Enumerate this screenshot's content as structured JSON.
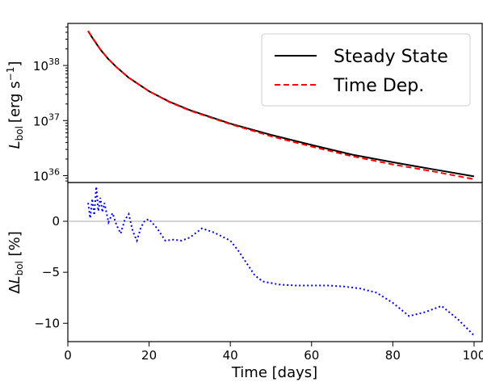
{
  "charts": {
    "top": {
      "ylabel_main": "L",
      "ylabel_sub": "bol",
      "ylabel_unit": "[erg s",
      "ylabel_exp": "−1",
      "ylabel_close": "]",
      "yticks": [
        {
          "value": 1e+36,
          "base": "10",
          "exp": "36"
        },
        {
          "value": 1e+37,
          "base": "10",
          "exp": "37"
        },
        {
          "value": 1e+38,
          "base": "10",
          "exp": "38"
        }
      ]
    },
    "bottom": {
      "ylabel_delta": "Δ",
      "ylabel_main": "L",
      "ylabel_sub": "bol",
      "ylabel_unit": " [%]",
      "yticks": [
        "0",
        "−5",
        "−10"
      ]
    },
    "xlabel": "Time [days]",
    "xticks": [
      "0",
      "20",
      "40",
      "60",
      "80",
      "100"
    ]
  },
  "legend": [
    {
      "label": "Steady State",
      "color": "#000000",
      "style": "solid"
    },
    {
      "label": "Time Dep.",
      "color": "#ff0000",
      "style": "dashed"
    }
  ],
  "chart_data": [
    {
      "type": "line",
      "panel": "top",
      "xlabel": "Time [days]",
      "ylabel": "L_bol [erg s^-1]",
      "yscale": "log",
      "xlim": [
        0,
        102
      ],
      "ylim": [
        7.5e+35,
        5.8e+38
      ],
      "grid": false,
      "legend_position": "top-right",
      "series": [
        {
          "name": "Steady State",
          "color": "#000000",
          "x": [
            5,
            6,
            7,
            8,
            10,
            12,
            15,
            20,
            25,
            30,
            40,
            50,
            60,
            70,
            80,
            90,
            100
          ],
          "y": [
            4.2e+38,
            3.2e+38,
            2.5e+38,
            1.95e+38,
            1.3e+38,
            9.3e+37,
            6e+37,
            3.4e+37,
            2.2e+37,
            1.55e+37,
            8.8e+36,
            5.5e+36,
            3.6e+36,
            2.4e+36,
            1.75e+36,
            1.3e+36,
            9.7e+35
          ]
        },
        {
          "name": "Time Dep.",
          "color": "#ff0000",
          "x": [
            5,
            6,
            7,
            8,
            10,
            12,
            15,
            20,
            25,
            30,
            40,
            50,
            60,
            70,
            80,
            90,
            100
          ],
          "y": [
            4.25e+38,
            3.22e+38,
            2.55e+38,
            1.96e+38,
            1.31e+38,
            9.25e+37,
            6e+37,
            3.4e+37,
            2.17e+37,
            1.52e+37,
            8.6e+36,
            5.2e+36,
            3.37e+36,
            2.25e+36,
            1.6e+36,
            1.19e+36,
            8.6e+35
          ]
        }
      ]
    },
    {
      "type": "line",
      "panel": "bottom",
      "xlabel": "Time [days]",
      "ylabel": "ΔL_bol [%]",
      "xlim": [
        0,
        102
      ],
      "ylim": [
        -11.8,
        3.8
      ],
      "grid": false,
      "reference_line": 0,
      "series": [
        {
          "color": "#0000ff",
          "style": "dotted",
          "x": [
            5,
            5.5,
            6,
            6.5,
            7,
            7.5,
            8,
            8.5,
            9,
            10,
            11,
            12,
            13,
            14,
            15,
            16,
            17,
            18,
            19,
            20,
            22,
            24,
            26,
            28,
            30,
            33,
            36,
            40,
            42,
            44,
            46,
            48,
            52,
            56,
            60,
            64,
            68,
            72,
            76,
            80,
            84,
            88,
            92,
            96,
            100
          ],
          "y": [
            1.8,
            0.3,
            2.2,
            0.6,
            3.4,
            1.0,
            2.3,
            0.9,
            1.8,
            -0.1,
            0.8,
            -0.4,
            -1.2,
            0.1,
            0.7,
            -1.0,
            -1.9,
            -0.6,
            0.1,
            0.2,
            -0.7,
            -1.9,
            -1.8,
            -1.9,
            -1.6,
            -0.7,
            -1.1,
            -1.9,
            -2.9,
            -4.1,
            -5.3,
            -5.9,
            -6.2,
            -6.3,
            -6.3,
            -6.3,
            -6.4,
            -6.6,
            -7.0,
            -8.0,
            -9.3,
            -8.9,
            -8.3,
            -9.6,
            -11.2
          ]
        }
      ]
    }
  ]
}
